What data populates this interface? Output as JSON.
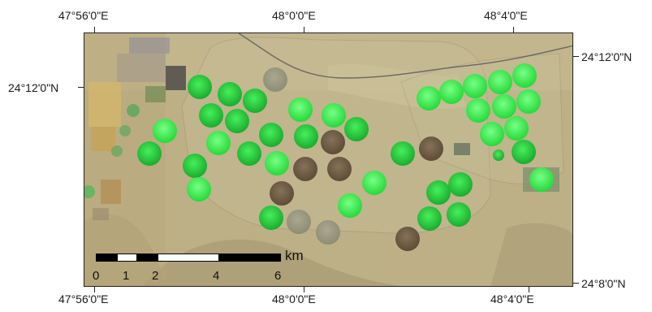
{
  "map": {
    "lon_labels_top": [
      "47°56'0\"E",
      "48°0'0\"E",
      "48°4'0\"E"
    ],
    "lon_labels_bottom": [
      "47°56'0\"E",
      "48°0'0\"E",
      "48°4'0\"E"
    ],
    "lat_labels_left": [
      "24°12'0\"N"
    ],
    "lat_labels_right": [
      "24°12'0\"N",
      "24°8'0\"N"
    ],
    "scale_bar": {
      "ticks": [
        "0",
        "1",
        "2",
        "4",
        "6"
      ],
      "unit": "km"
    }
  },
  "colors": {
    "desert": "#b9ac7e",
    "field_green": "#22c63a",
    "field_bright": "#39f04a",
    "field_brown": "#6e5a43",
    "field_gray": "#9a9a82"
  }
}
